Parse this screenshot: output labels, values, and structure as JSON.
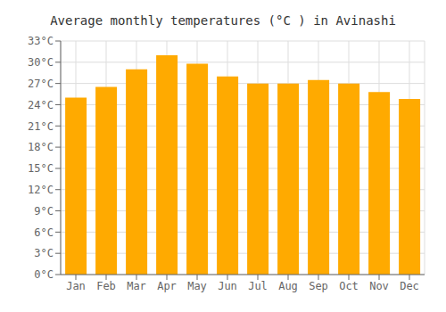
{
  "chart_data": {
    "type": "bar",
    "title": "Average monthly temperatures (°C ) in Avinashi",
    "categories": [
      "Jan",
      "Feb",
      "Mar",
      "Apr",
      "May",
      "Jun",
      "Jul",
      "Aug",
      "Sep",
      "Oct",
      "Nov",
      "Dec"
    ],
    "values": [
      25.0,
      26.5,
      29.0,
      31.0,
      29.8,
      28.0,
      27.0,
      27.0,
      27.5,
      27.0,
      25.8,
      24.8
    ],
    "color": "#FFAA00",
    "ylim": [
      0,
      33
    ],
    "yticks": [
      {
        "value": 0,
        "label": "0°C"
      },
      {
        "value": 3,
        "label": "3°C"
      },
      {
        "value": 6,
        "label": "6°C"
      },
      {
        "value": 9,
        "label": "9°C"
      },
      {
        "value": 12,
        "label": "12°C"
      },
      {
        "value": 15,
        "label": "15°C"
      },
      {
        "value": 18,
        "label": "18°C"
      },
      {
        "value": 21,
        "label": "21°C"
      },
      {
        "value": 24,
        "label": "24°C"
      },
      {
        "value": 27,
        "label": "27°C"
      },
      {
        "value": 30,
        "label": "30°C"
      },
      {
        "value": 33,
        "label": "33°C"
      }
    ],
    "grid": true
  }
}
